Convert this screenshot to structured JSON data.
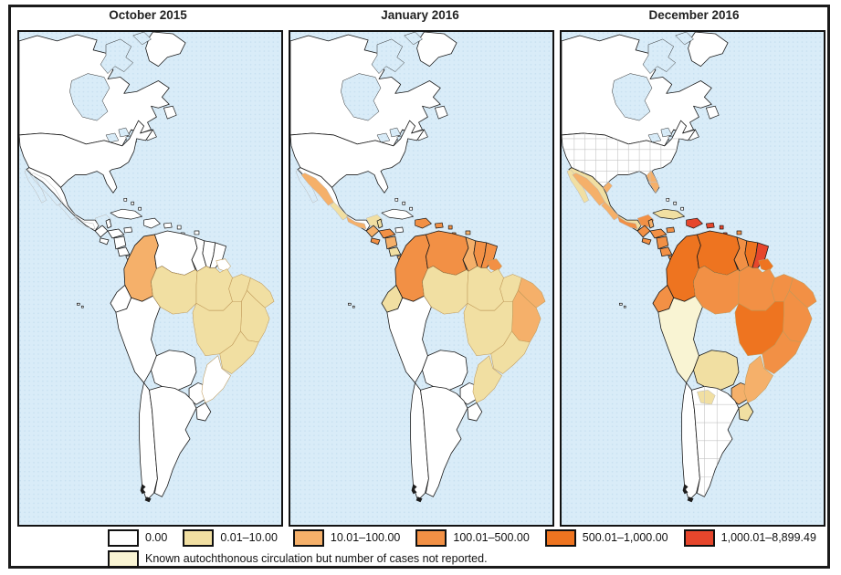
{
  "figure": {
    "panels": [
      {
        "title": "October 2015",
        "us_state_lines": false,
        "argentina_province_lines": false,
        "regions": {
          "colombia": "c2",
          "br_amazonas": "c1",
          "br_para": "c1",
          "br_maranhao": "c1",
          "br_ceara": "c1",
          "br_bahia": "c1",
          "br_center": "c1",
          "br_southeast": "c1",
          "br_south": "c0"
        }
      },
      {
        "title": "January 2016",
        "us_state_lines": false,
        "argentina_province_lines": false,
        "regions": {
          "mex_nw": "c2",
          "mex_central": "c1",
          "mex_south": "c2",
          "mex_yucatan": "c1",
          "guatemala": "c2",
          "belize": "c1",
          "honduras": "c3",
          "elsalvador": "c3",
          "nicaragua": "c2",
          "costarica": "c1",
          "panama": "c2",
          "hispaniola": "c3",
          "puertorico": "c3",
          "lesser_antilles": "c3",
          "trinidad": "c2",
          "colombia": "c3",
          "venezuela": "c3",
          "guyana": "c2",
          "suriname": "c3",
          "frenchguiana": "c3",
          "ecuador": "c1",
          "br_amazonas": "c1",
          "br_amapa": "c3",
          "br_para": "c1",
          "br_maranhao": "c1",
          "br_ceara": "c2",
          "br_bahia": "c2",
          "br_center": "c1",
          "br_southeast": "c1",
          "br_south": "c1"
        }
      },
      {
        "title": "December 2016",
        "us_state_lines": true,
        "argentina_province_lines": true,
        "regions": {
          "usa_florida": "c2",
          "usa_texas_tip": "c2",
          "mexico": "c1",
          "mex_baja": "c1",
          "mex_nw": "c2",
          "mex_central": "c2",
          "mex_south": "c3",
          "mex_yucatan": "c3",
          "guatemala": "c3",
          "belize": "c2",
          "honduras": "c3",
          "elsalvador": "c3",
          "nicaragua": "c3",
          "costarica": "c3",
          "panama": "c3",
          "cuba": "c1",
          "jamaica": "c3",
          "hispaniola": "c5",
          "puertorico": "c5",
          "lesser_antilles": "c5",
          "trinidad": "c3",
          "colombia": "c4",
          "venezuela": "c4",
          "guyana": "c3",
          "suriname": "c4",
          "frenchguiana": "c5",
          "ecuador": "c3",
          "peru": "known",
          "bolivia": "c1",
          "paraguay": "c2",
          "arg_north": "c1",
          "uruguay": "c1",
          "br_amazonas": "c3",
          "br_amapa": "c4",
          "br_para": "c3",
          "br_maranhao": "c3",
          "br_ceara": "c3",
          "br_bahia": "c3",
          "br_center": "c4",
          "br_southeast": "c3",
          "br_south": "c2"
        }
      }
    ],
    "category_colors": {
      "c0": "#ffffff",
      "c1": "#f1dfa2",
      "c2": "#f5b06a",
      "c3": "#f29045",
      "c4": "#ee7420",
      "c5": "#e6462c",
      "known": "#f9f4d3"
    },
    "legend": {
      "items": [
        {
          "label": "0.00",
          "cat": "c0"
        },
        {
          "label": "0.01–10.00",
          "cat": "c1"
        },
        {
          "label": "10.01–100.00",
          "cat": "c2"
        },
        {
          "label": "100.01–500.00",
          "cat": "c3"
        },
        {
          "label": "500.01–1,000.00",
          "cat": "c4"
        },
        {
          "label": "1,000.01–8,899.49",
          "cat": "c5"
        }
      ],
      "known": {
        "label": "Known autochthonous circulation but number of cases not reported.",
        "cat": "known"
      }
    },
    "colors": {
      "ocean": "#d9ecf8",
      "ocean_dot": "#c6dff0",
      "frame": "#1b1b1b",
      "panel_border": "#121212",
      "land": "#ffffff",
      "country_line": "#1a1a1a",
      "admin_line_gray": "#b5b5b5",
      "brazil_state_line": "#c09a5a"
    }
  }
}
